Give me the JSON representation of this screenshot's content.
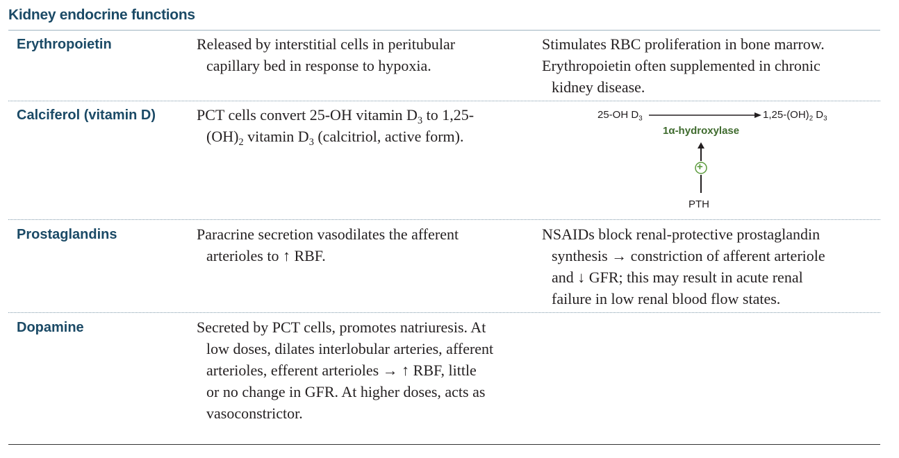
{
  "title": "Kidney endocrine functions",
  "rows": [
    {
      "term": "Erythropoietin",
      "desc": [
        "Released by interstitial cells in peritubular",
        "capillary bed in response to hypoxia."
      ],
      "note": [
        "Stimulates RBC proliferation in bone marrow.",
        "Erythropoietin often supplemented in chronic",
        "kidney disease."
      ]
    },
    {
      "term": "Calciferol (vitamin D)",
      "desc_l1_a": "PCT cells convert 25-OH vitamin D",
      "desc_l1_sub": "3",
      "desc_l1_b": " to 1,25-",
      "desc_l2_a": "(OH)",
      "desc_l2_sub1": "2",
      "desc_l2_b": " vitamin D",
      "desc_l2_sub2": "3",
      "desc_l2_c": " (calcitriol, active form).",
      "diagram": {
        "substrate": "25-OH D",
        "substrate_sub": "3",
        "product_a": "1,25-(OH)",
        "product_sub1": "2",
        "product_b": " D",
        "product_sub2": "3",
        "enzyme": "1α-hydroxylase",
        "regulator": "PTH",
        "regulator_sign": "+"
      }
    },
    {
      "term": "Prostaglandins",
      "desc": [
        "Paracrine secretion vasodilates the afferent",
        "arterioles to ↑ RBF."
      ],
      "note": [
        "NSAIDs block renal-protective prostaglandin",
        "synthesis → constriction of afferent arteriole",
        "and ↓ GFR; this may result in acute renal",
        "failure in low renal blood flow states."
      ]
    },
    {
      "term": "Dopamine",
      "desc": [
        "Secreted by PCT cells, promotes natriuresis. At",
        "low doses, dilates interlobular arteries, afferent",
        "arterioles, efferent arterioles → ↑ RBF, little",
        "or no change in GFR. At higher doses, acts as",
        "vasoconstrictor."
      ]
    }
  ]
}
